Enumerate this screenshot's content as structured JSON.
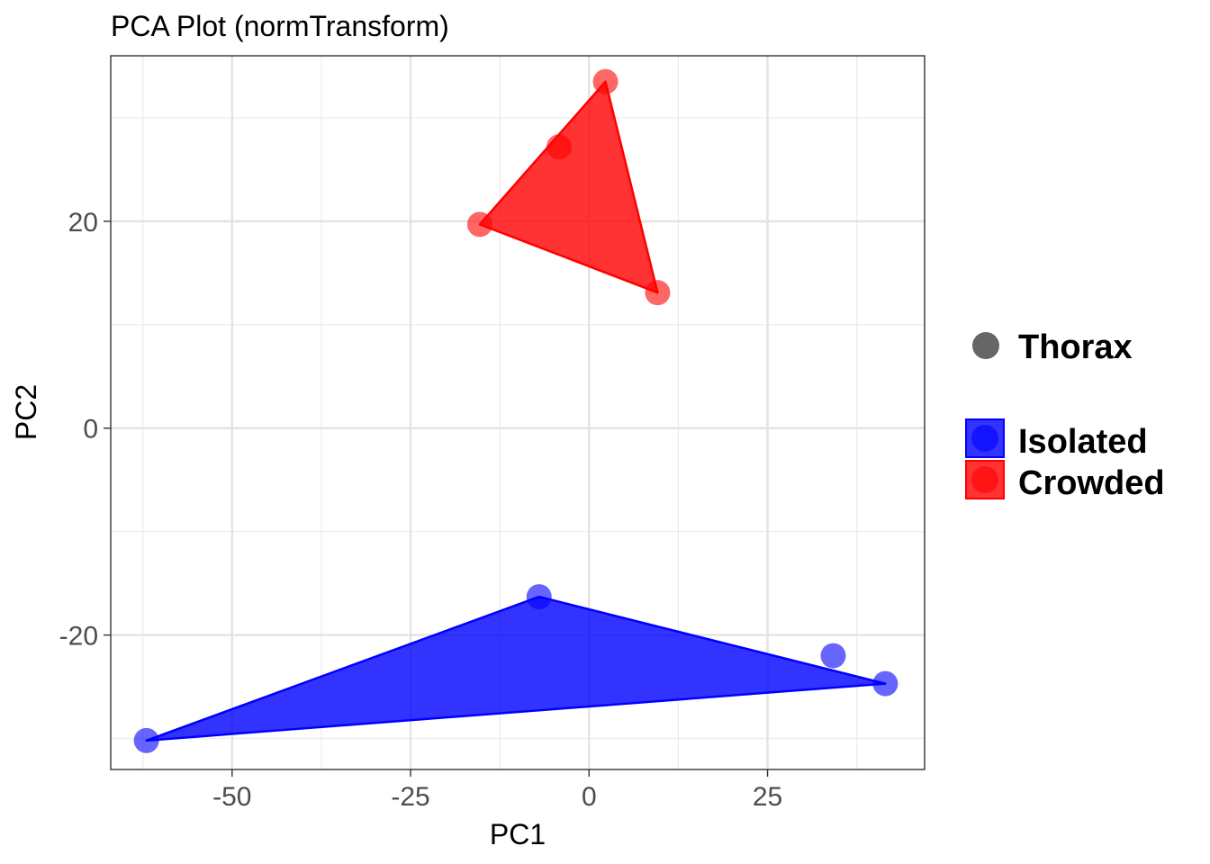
{
  "chart_data": {
    "type": "scatter",
    "title": "PCA Plot (normTransform)",
    "xlabel": "PC1",
    "ylabel": "PC2",
    "xlim": [
      -67,
      47
    ],
    "ylim": [
      -33,
      36
    ],
    "x_ticks": [
      -50,
      -25,
      0,
      25
    ],
    "y_ticks": [
      -20,
      0,
      20
    ],
    "x_tick_labels": [
      "-50",
      "-25",
      "0",
      "25"
    ],
    "y_tick_labels": [
      "-20",
      "0",
      "20"
    ],
    "grid": true,
    "legend_position": "right",
    "shape_legend": {
      "label": "Thorax",
      "color": "#666666"
    },
    "series": [
      {
        "name": "Isolated",
        "color": "#0000ff",
        "points": [
          {
            "x": -62,
            "y": -30.2
          },
          {
            "x": -7,
            "y": -16.3
          },
          {
            "x": 34.2,
            "y": -22
          },
          {
            "x": 41.5,
            "y": -24.7
          }
        ],
        "hull": [
          {
            "x": -62,
            "y": -30.2
          },
          {
            "x": -7,
            "y": -16.3
          },
          {
            "x": 41.5,
            "y": -24.7
          }
        ]
      },
      {
        "name": "Crowded",
        "color": "#ff0000",
        "points": [
          {
            "x": 2.3,
            "y": 33.5
          },
          {
            "x": -4.2,
            "y": 27.2
          },
          {
            "x": -15.3,
            "y": 19.7
          },
          {
            "x": 9.6,
            "y": 13.1
          }
        ],
        "hull": [
          {
            "x": 2.3,
            "y": 33.5
          },
          {
            "x": -15.3,
            "y": 19.7
          },
          {
            "x": 9.6,
            "y": 13.1
          }
        ]
      }
    ]
  }
}
